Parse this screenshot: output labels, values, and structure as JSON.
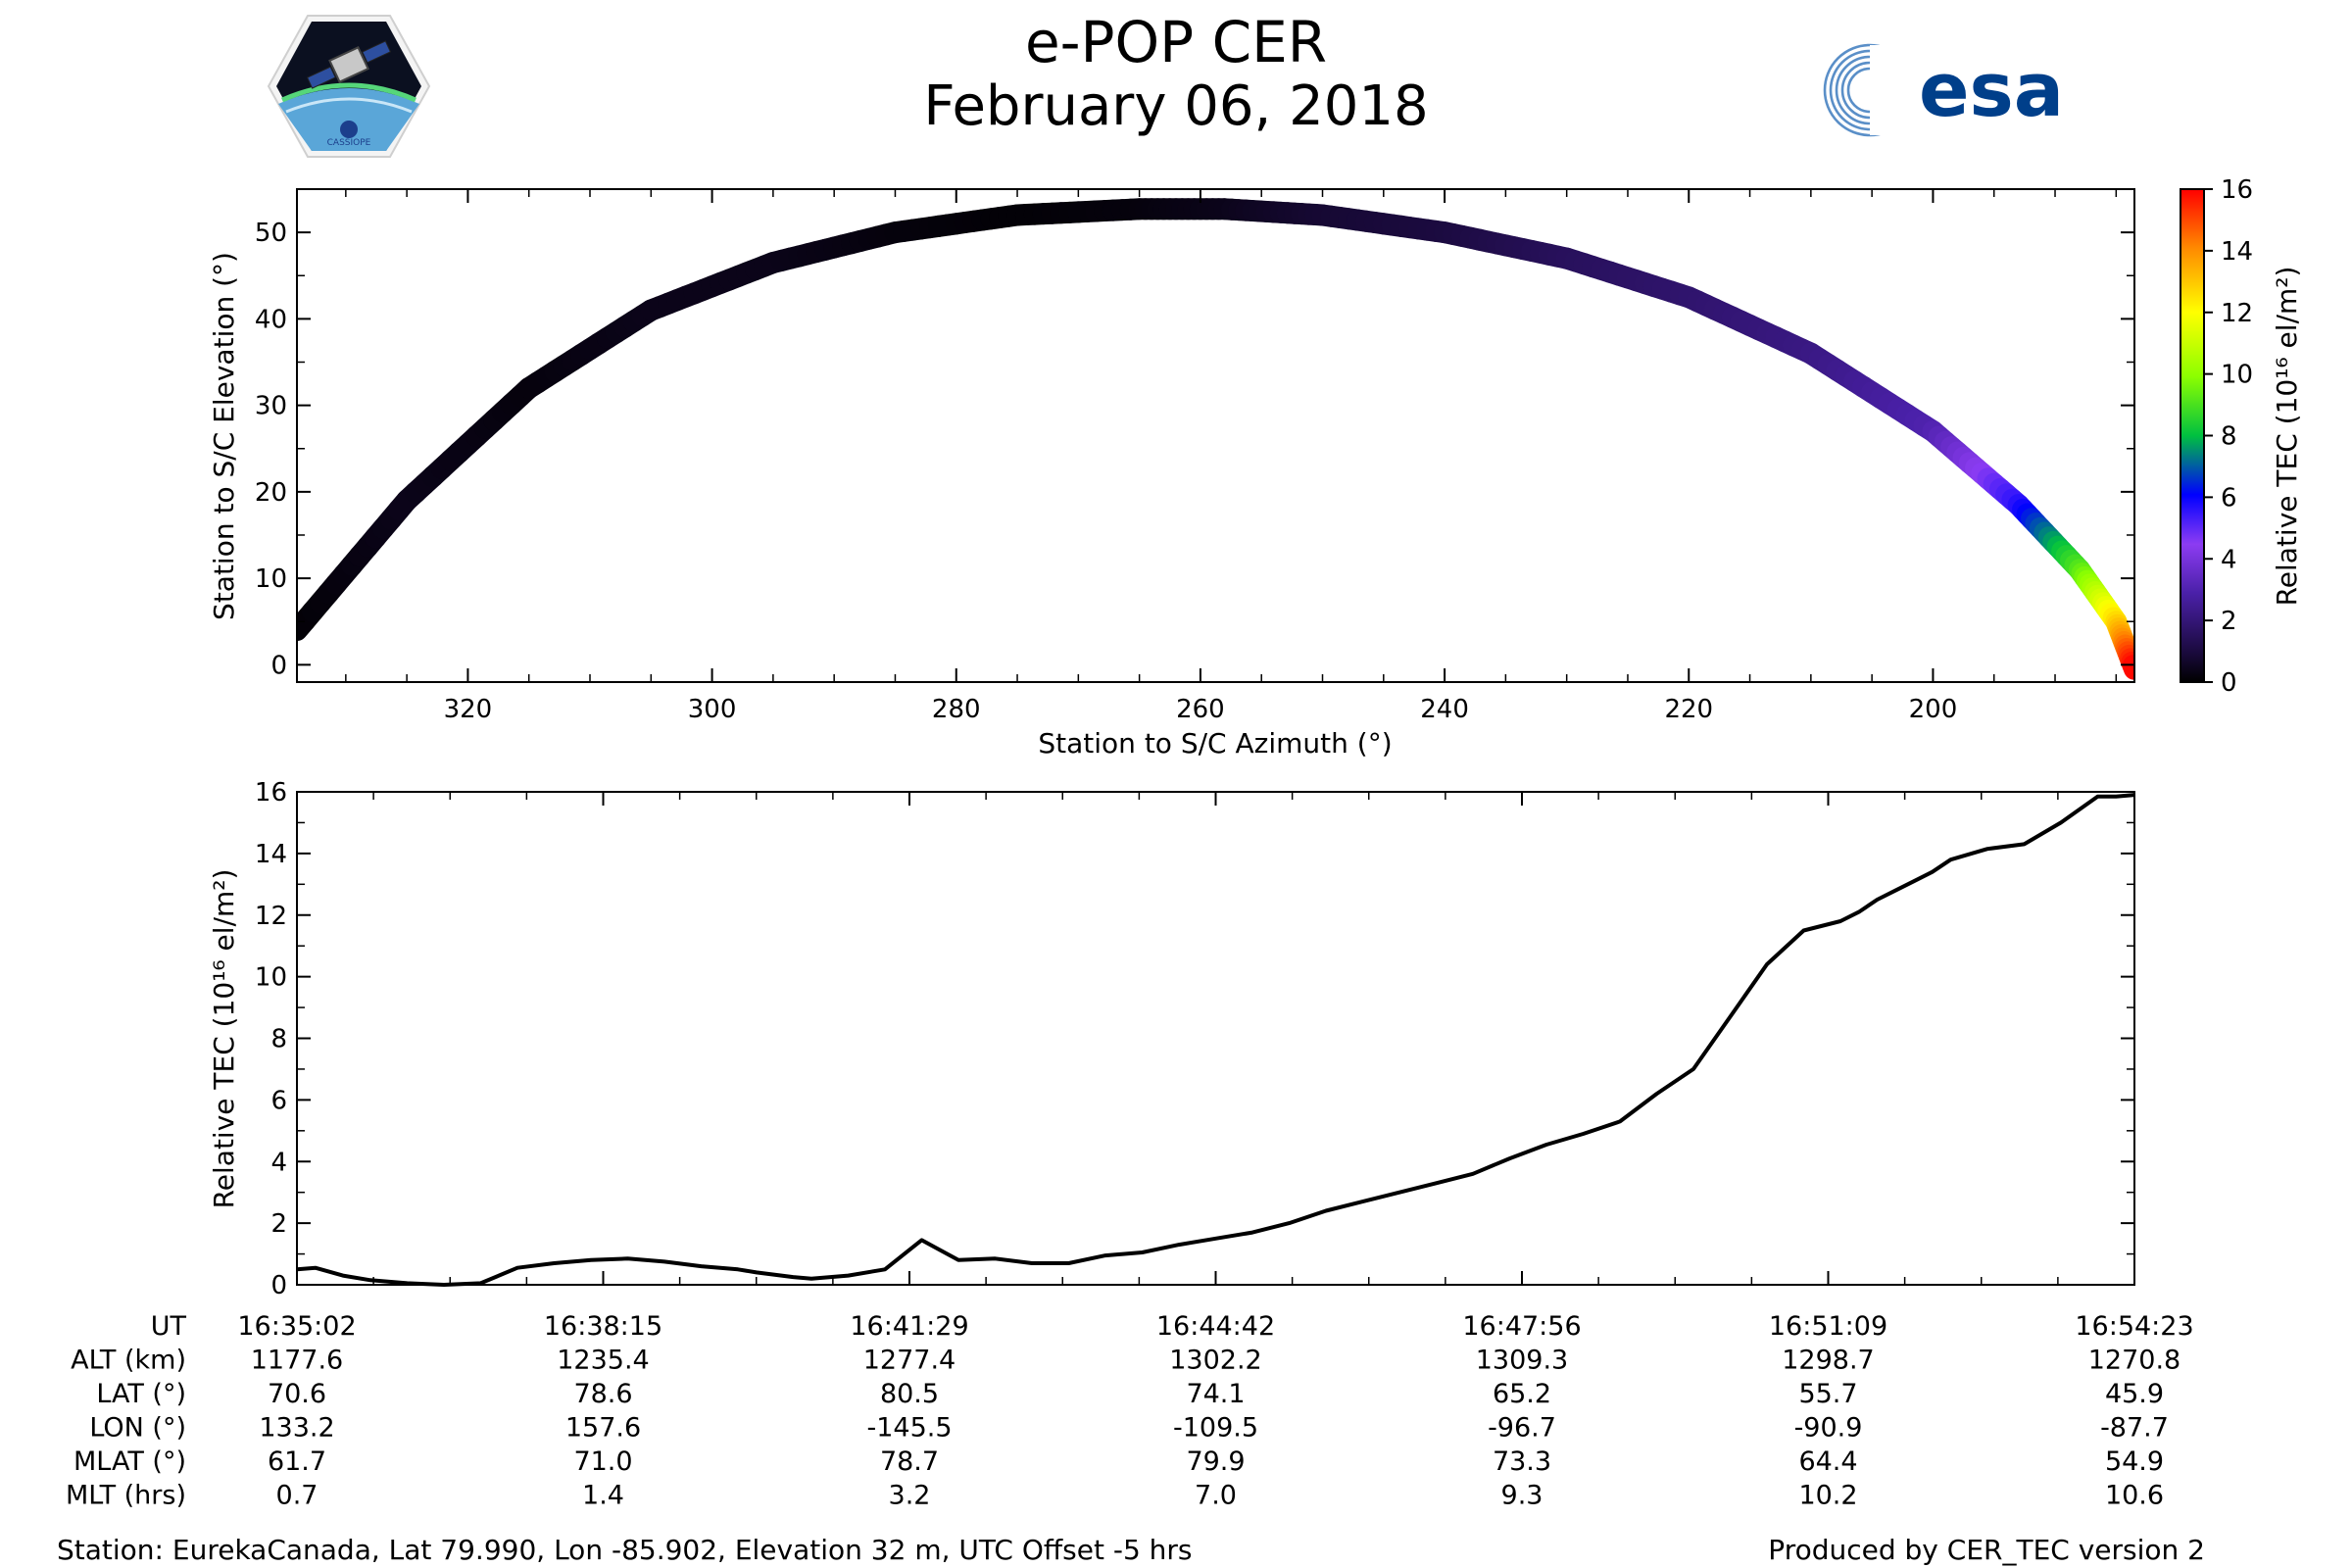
{
  "header": {
    "title": "e-POP CER",
    "date": "February 06, 2018",
    "cassiope_logo_text": "CASSIOPE",
    "esa_logo_text": "esa"
  },
  "colors": {
    "line": "#000000",
    "background": "#ffffff"
  },
  "chart_data": [
    {
      "type": "scatter",
      "title": "",
      "xlabel": "Station to S/C Azimuth (°)",
      "ylabel": "Station to S/C Elevation (°)",
      "xlim": [
        334,
        183.5
      ],
      "ylim": [
        -2,
        55
      ],
      "xticks": [
        320,
        300,
        280,
        260,
        240,
        220,
        200
      ],
      "yticks": [
        0,
        10,
        20,
        30,
        40,
        50
      ],
      "colorbar": {
        "label": "Relative TEC (10¹⁶ el/m²)",
        "range": [
          0,
          16
        ],
        "ticks": [
          0,
          2,
          4,
          6,
          8,
          10,
          12,
          14,
          16
        ],
        "colormap": "gnuplot2"
      },
      "track": {
        "azimuth": [
          334,
          325,
          315,
          305,
          295,
          285,
          275,
          265,
          258,
          250,
          240,
          230,
          220,
          210,
          200,
          193,
          188,
          185,
          183.5
        ],
        "elevation": [
          4,
          19,
          32,
          41,
          46.5,
          50,
          52,
          52.7,
          52.7,
          52,
          50,
          47,
          42.5,
          36,
          27,
          18.5,
          11,
          5,
          -0.5
        ],
        "tec": [
          0.1,
          0.4,
          0.2,
          0.4,
          0.4,
          0.2,
          0.1,
          0.2,
          0.4,
          0.8,
          1,
          1.5,
          1.8,
          2.2,
          3,
          5.5,
          9,
          12.5,
          16
        ]
      }
    },
    {
      "type": "line",
      "title": "",
      "xlabel": "",
      "ylabel": "Relative TEC (10¹⁶ el/m²)",
      "ylim": [
        0,
        16
      ],
      "yticks": [
        0,
        2,
        4,
        6,
        8,
        10,
        12,
        14,
        16
      ],
      "xlim": [
        0,
        100
      ],
      "x": [
        0,
        1,
        2.5,
        4,
        6,
        8,
        10,
        12,
        14,
        16,
        18,
        20,
        22,
        24,
        25,
        27,
        28,
        30,
        32,
        34,
        36,
        38,
        40,
        42,
        44,
        46,
        48,
        50,
        52,
        54,
        56,
        58,
        60,
        62,
        64,
        66,
        68,
        70,
        72,
        74,
        76,
        78,
        80,
        82,
        84,
        85,
        86,
        87,
        88,
        89,
        90,
        92,
        94,
        96,
        98,
        99,
        100
      ],
      "values": [
        0.5,
        0.55,
        0.3,
        0.15,
        0.05,
        0.0,
        0.05,
        0.55,
        0.7,
        0.8,
        0.85,
        0.75,
        0.6,
        0.5,
        0.4,
        0.25,
        0.2,
        0.3,
        0.5,
        1.45,
        0.8,
        0.85,
        0.7,
        0.7,
        0.95,
        1.05,
        1.3,
        1.5,
        1.7,
        2.0,
        2.4,
        2.7,
        3.0,
        3.3,
        3.6,
        4.1,
        4.55,
        4.9,
        5.3,
        6.2,
        7.0,
        8.7,
        10.4,
        11.5,
        11.8,
        12.1,
        12.5,
        12.8,
        13.1,
        13.4,
        13.8,
        14.15,
        14.3,
        15.0,
        15.85,
        15.85,
        15.9
      ]
    }
  ],
  "info_table": {
    "row_labels": [
      "UT",
      "ALT (km)",
      "LAT (°)",
      "LON (°)",
      "MLAT (°)",
      "MLT (hrs)"
    ],
    "columns": [
      [
        "16:35:02",
        "1177.6",
        "70.6",
        "133.2",
        "61.7",
        "0.7"
      ],
      [
        "16:38:15",
        "1235.4",
        "78.6",
        "157.6",
        "71.0",
        "1.4"
      ],
      [
        "16:41:29",
        "1277.4",
        "80.5",
        "-145.5",
        "78.7",
        "3.2"
      ],
      [
        "16:44:42",
        "1302.2",
        "74.1",
        "-109.5",
        "79.9",
        "7.0"
      ],
      [
        "16:47:56",
        "1309.3",
        "65.2",
        "-96.7",
        "73.3",
        "9.3"
      ],
      [
        "16:51:09",
        "1298.7",
        "55.7",
        "-90.9",
        "64.4",
        "10.2"
      ],
      [
        "16:54:23",
        "1270.8",
        "45.9",
        "-87.7",
        "54.9",
        "10.6"
      ]
    ]
  },
  "footer": {
    "station": "Station: EurekaCanada, Lat 79.990, Lon -85.902, Elevation 32 m, UTC Offset -5 hrs",
    "produced": "Produced by CER_TEC version 2"
  }
}
